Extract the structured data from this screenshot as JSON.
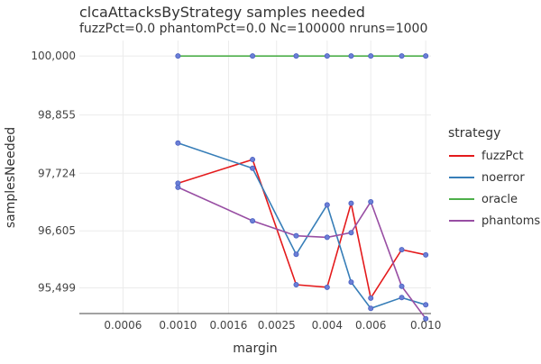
{
  "chart_data": {
    "type": "line",
    "title": "clcaAttacksByStrategy samples needed",
    "subtitle": "fuzzPct=0.0 phantomPct=0.0 Nc=100000 nruns=1000",
    "xlabel": "margin",
    "ylabel": "samplesNeeded",
    "x_scale": "log",
    "xlim": [
      0.0004,
      0.0105
    ],
    "ylim": [
      95000,
      100300
    ],
    "x_ticks": [
      0.0006,
      0.001,
      0.0016,
      0.0025,
      0.004,
      0.006,
      0.01
    ],
    "x_tick_labels": [
      "0.0006",
      "0.0010",
      "0.0016",
      "0.0025",
      "0.004",
      "0.006",
      "0.010"
    ],
    "y_ticks": [
      95499,
      96605,
      97724,
      98855,
      100000
    ],
    "y_tick_labels": [
      "95,499",
      "96,605",
      "97,724",
      "98,855",
      "100,000"
    ],
    "grid": true,
    "legend_title": "strategy",
    "legend_position": "right",
    "x": [
      0.001,
      0.002,
      0.003,
      0.004,
      0.005,
      0.006,
      0.008,
      0.01
    ],
    "series": [
      {
        "name": "fuzzPct",
        "color": "#e41a1c",
        "values": [
          97530,
          97990,
          95560,
          95510,
          97140,
          95300,
          96240,
          96140
        ]
      },
      {
        "name": "noerror",
        "color": "#377eb8",
        "values": [
          98310,
          97820,
          96150,
          97110,
          95610,
          95100,
          95310,
          95170
        ]
      },
      {
        "name": "oracle",
        "color": "#4daf4a",
        "values": [
          100000,
          100000,
          100000,
          100000,
          100000,
          100000,
          100000,
          100000
        ]
      },
      {
        "name": "phantoms",
        "color": "#984ea3",
        "values": [
          97450,
          96800,
          96510,
          96480,
          96570,
          97170,
          95530,
          94900
        ]
      }
    ]
  }
}
